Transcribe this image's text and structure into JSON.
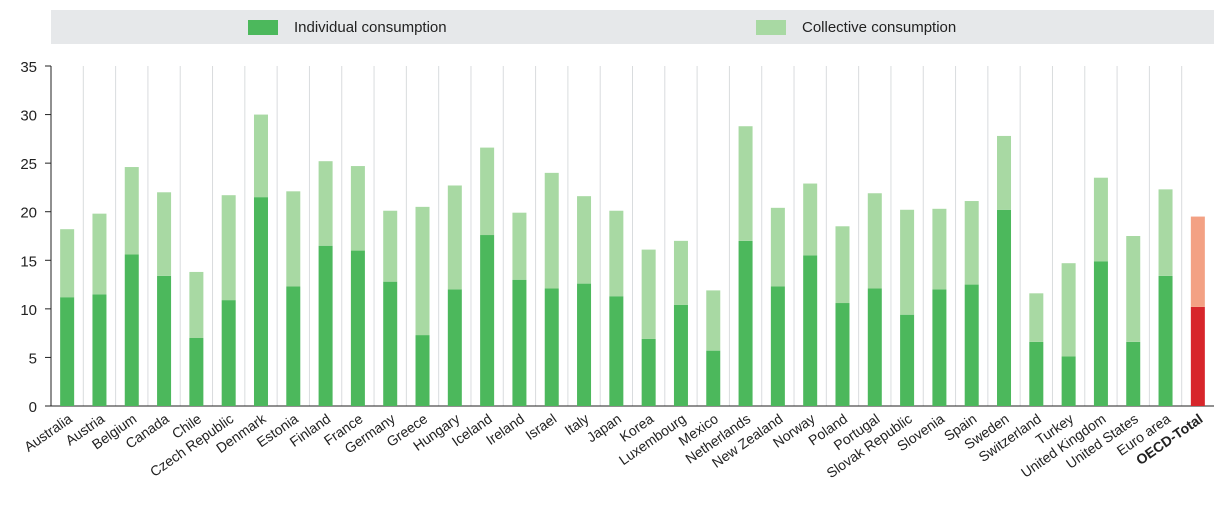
{
  "legend": {
    "items": [
      {
        "label": "Individual consumption",
        "color": "#4cb85c"
      },
      {
        "label": "Collective consumption",
        "color": "#a8d9a3"
      }
    ]
  },
  "chart_data": {
    "type": "bar",
    "stacked": true,
    "title": "",
    "xlabel": "",
    "ylabel": "",
    "ylim": [
      0,
      35
    ],
    "yticks": [
      0,
      5,
      10,
      15,
      20,
      25,
      30,
      35
    ],
    "grid": "vertical lines between categories",
    "legend_position": "top",
    "categories": [
      "Australia",
      "Austria",
      "Belgium",
      "Canada",
      "Chile",
      "Czech Republic",
      "Denmark",
      "Estonia",
      "Finland",
      "France",
      "Germany",
      "Greece",
      "Hungary",
      "Iceland",
      "Ireland",
      "Israel",
      "Italy",
      "Japan",
      "Korea",
      "Luxembourg",
      "Mexico",
      "Netherlands",
      "New Zealand",
      "Norway",
      "Poland",
      "Portugal",
      "Slovak Republic",
      "Slovenia",
      "Spain",
      "Sweden",
      "Switzerland",
      "Turkey",
      "United Kingdom",
      "United States",
      "Euro area",
      "OECD-Total"
    ],
    "highlight_category": "OECD-Total",
    "highlight_colors": {
      "Individual consumption": "#d7262b",
      "Collective consumption": "#f3a184"
    },
    "series": [
      {
        "name": "Individual consumption",
        "color": "#4cb85c",
        "values": [
          11.2,
          11.5,
          15.6,
          13.4,
          7.0,
          10.9,
          21.5,
          12.3,
          16.5,
          16.0,
          12.8,
          7.3,
          12.0,
          17.6,
          13.0,
          12.1,
          12.6,
          11.3,
          6.9,
          10.4,
          5.7,
          17.0,
          12.3,
          15.5,
          10.6,
          12.1,
          9.4,
          12.0,
          12.5,
          20.2,
          6.6,
          5.1,
          14.9,
          6.6,
          13.4,
          10.2
        ]
      },
      {
        "name": "Collective consumption",
        "color": "#a8d9a3",
        "values": [
          7.0,
          8.3,
          9.0,
          8.6,
          6.8,
          10.8,
          8.5,
          9.8,
          8.7,
          8.7,
          7.3,
          13.2,
          10.7,
          9.0,
          6.9,
          11.9,
          9.0,
          8.8,
          9.2,
          6.6,
          6.2,
          11.8,
          8.1,
          7.4,
          7.9,
          9.8,
          10.8,
          8.3,
          8.6,
          7.6,
          5.0,
          9.6,
          8.6,
          10.9,
          8.9,
          9.3
        ]
      }
    ]
  }
}
